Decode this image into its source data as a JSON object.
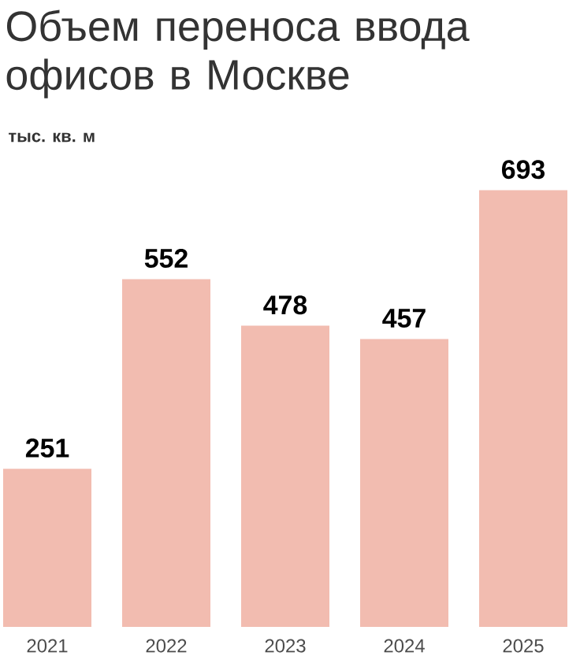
{
  "chart_data": {
    "type": "bar",
    "title": "Объем переноса ввода офисов в Москве",
    "subtitle": "тыс. кв. м",
    "categories": [
      "2021",
      "2022",
      "2023",
      "2024",
      "2025"
    ],
    "values": [
      251,
      552,
      478,
      457,
      693
    ],
    "color": "#f2bcb0",
    "data_labels": true
  }
}
